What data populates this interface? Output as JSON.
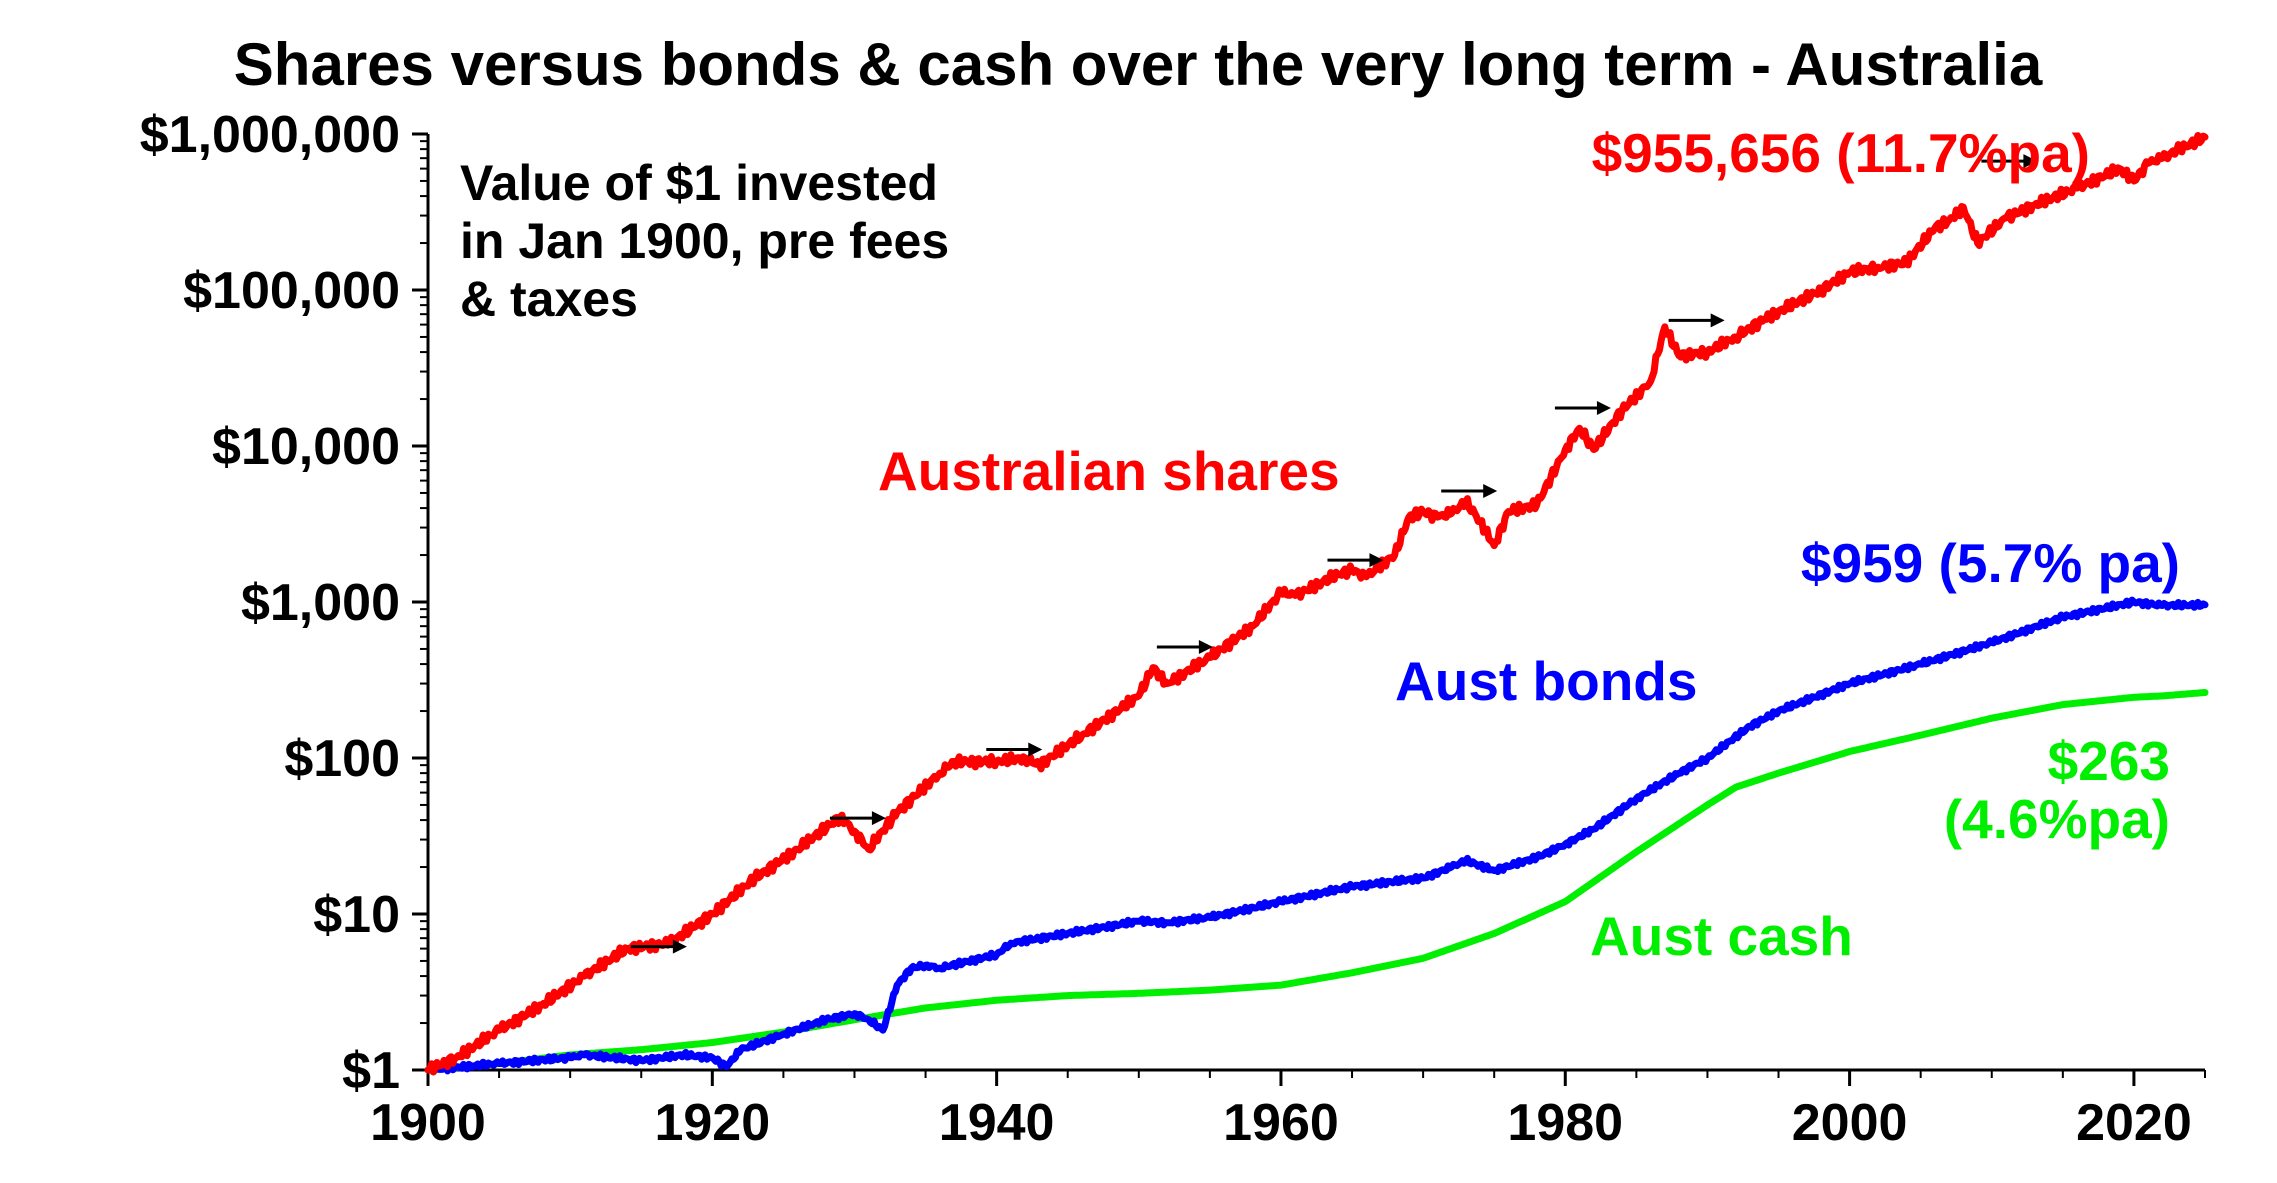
{
  "chart_data": {
    "type": "line",
    "title": "Shares versus bonds & cash over the very long term - Australia",
    "xlabel": "",
    "ylabel": "",
    "y_scale": "log",
    "xlim": [
      1900,
      2025
    ],
    "ylim": [
      1,
      1000000
    ],
    "grid": false,
    "legend": "none",
    "x_ticks": [
      {
        "value": 1900,
        "label": "1900"
      },
      {
        "value": 1920,
        "label": "1920"
      },
      {
        "value": 1940,
        "label": "1940"
      },
      {
        "value": 1960,
        "label": "1960"
      },
      {
        "value": 1980,
        "label": "1980"
      },
      {
        "value": 2000,
        "label": "2000"
      },
      {
        "value": 2020,
        "label": "2020"
      }
    ],
    "y_ticks": [
      {
        "value": 1,
        "label": "$1"
      },
      {
        "value": 10,
        "label": "$10"
      },
      {
        "value": 100,
        "label": "$100"
      },
      {
        "value": 1000,
        "label": "$1,000"
      },
      {
        "value": 10000,
        "label": "$10,000"
      },
      {
        "value": 100000,
        "label": "$100,000"
      },
      {
        "value": 1000000,
        "label": "$1,000,000"
      }
    ],
    "note_lines": [
      "Value of $1 invested",
      "in Jan 1900, pre fees",
      "& taxes"
    ],
    "series": [
      {
        "name": "Australian shares",
        "color": "#ff0000",
        "end_label": "$955,656 (11.7%pa)",
        "x": [
          1900,
          1902,
          1905,
          1908,
          1911,
          1914,
          1917,
          1920,
          1923,
          1926,
          1929,
          1930,
          1931,
          1933,
          1936,
          1937,
          1940,
          1942,
          1943,
          1946,
          1950,
          1951,
          1952,
          1955,
          1958,
          1960,
          1961,
          1964,
          1965,
          1966,
          1968,
          1969,
          1970,
          1971,
          1972,
          1973,
          1974,
          1975,
          1976,
          1978,
          1980,
          1981,
          1982,
          1984,
          1986,
          1987,
          1988,
          1990,
          1992,
          1994,
          1998,
          2000,
          2002,
          2004,
          2006,
          2007,
          2008,
          2009,
          2011,
          2013,
          2016,
          2019,
          2020,
          2021,
          2022,
          2023,
          2025
        ],
        "values": [
          1,
          1.2,
          1.8,
          2.6,
          4,
          6,
          6.5,
          10,
          17,
          26,
          42,
          34,
          26,
          45,
          80,
          95,
          95,
          100,
          90,
          140,
          250,
          380,
          300,
          440,
          700,
          1150,
          1100,
          1500,
          1600,
          1450,
          2000,
          3500,
          3800,
          3500,
          3700,
          4400,
          3300,
          2300,
          3800,
          4200,
          9500,
          13000,
          9500,
          17000,
          26000,
          58000,
          38000,
          40000,
          50000,
          65000,
          100000,
          130000,
          140000,
          150000,
          250000,
          280000,
          340000,
          200000,
          290000,
          350000,
          450000,
          600000,
          500000,
          650000,
          700000,
          780000,
          955656
        ]
      },
      {
        "name": "Aust bonds",
        "color": "#0000ff",
        "end_label": "$959 (5.7% pa)",
        "x": [
          1900,
          1905,
          1910,
          1911,
          1915,
          1918,
          1920,
          1921,
          1922,
          1925,
          1928,
          1930,
          1931,
          1932,
          1933,
          1934,
          1935,
          1936,
          1940,
          1941,
          1945,
          1950,
          1952,
          1955,
          1960,
          1965,
          1970,
          1972,
          1973,
          1975,
          1978,
          1980,
          1982,
          1985,
          1988,
          1990,
          1993,
          1995,
          2000,
          2005,
          2010,
          2015,
          2020,
          2022,
          2025
        ],
        "values": [
          1,
          1.1,
          1.2,
          1.25,
          1.15,
          1.25,
          1.2,
          1.05,
          1.35,
          1.7,
          2.1,
          2.3,
          2.1,
          1.8,
          3.5,
          4.5,
          4.7,
          4.5,
          5.5,
          6.5,
          7.5,
          9,
          8.8,
          9.5,
          12,
          15,
          17,
          20,
          22,
          19,
          23,
          28,
          35,
          55,
          80,
          100,
          160,
          200,
          300,
          400,
          550,
          800,
          1000,
          950,
          959
        ]
      },
      {
        "name": "Aust cash",
        "color": "#00ee00",
        "end_label": [
          "$263",
          "(4.6%pa)"
        ],
        "x": [
          1900,
          1905,
          1910,
          1915,
          1920,
          1925,
          1930,
          1935,
          1940,
          1945,
          1950,
          1955,
          1960,
          1965,
          1970,
          1975,
          1980,
          1985,
          1990,
          1992,
          1995,
          2000,
          2005,
          2010,
          2015,
          2020,
          2022,
          2025
        ],
        "values": [
          1,
          1.1,
          1.25,
          1.35,
          1.5,
          1.75,
          2.1,
          2.5,
          2.8,
          3.0,
          3.1,
          3.25,
          3.5,
          4.2,
          5.2,
          7.5,
          12,
          25,
          50,
          65,
          80,
          110,
          140,
          180,
          220,
          245,
          250,
          263
        ]
      }
    ],
    "annotations": {
      "shares_label": "Australian shares",
      "bonds_label": "Aust bonds",
      "cash_label": "Aust cash",
      "arrow_markers": [
        {
          "x": 1918,
          "value": 6
        },
        {
          "x": 1932,
          "value": 40
        },
        {
          "x": 1943,
          "value": 110
        },
        {
          "x": 1955,
          "value": 500
        },
        {
          "x": 1967,
          "value": 1800
        },
        {
          "x": 1975,
          "value": 5000
        },
        {
          "x": 1983,
          "value": 17000
        },
        {
          "x": 1991,
          "value": 62000
        },
        {
          "x": 2013,
          "value": 650000
        }
      ]
    }
  }
}
